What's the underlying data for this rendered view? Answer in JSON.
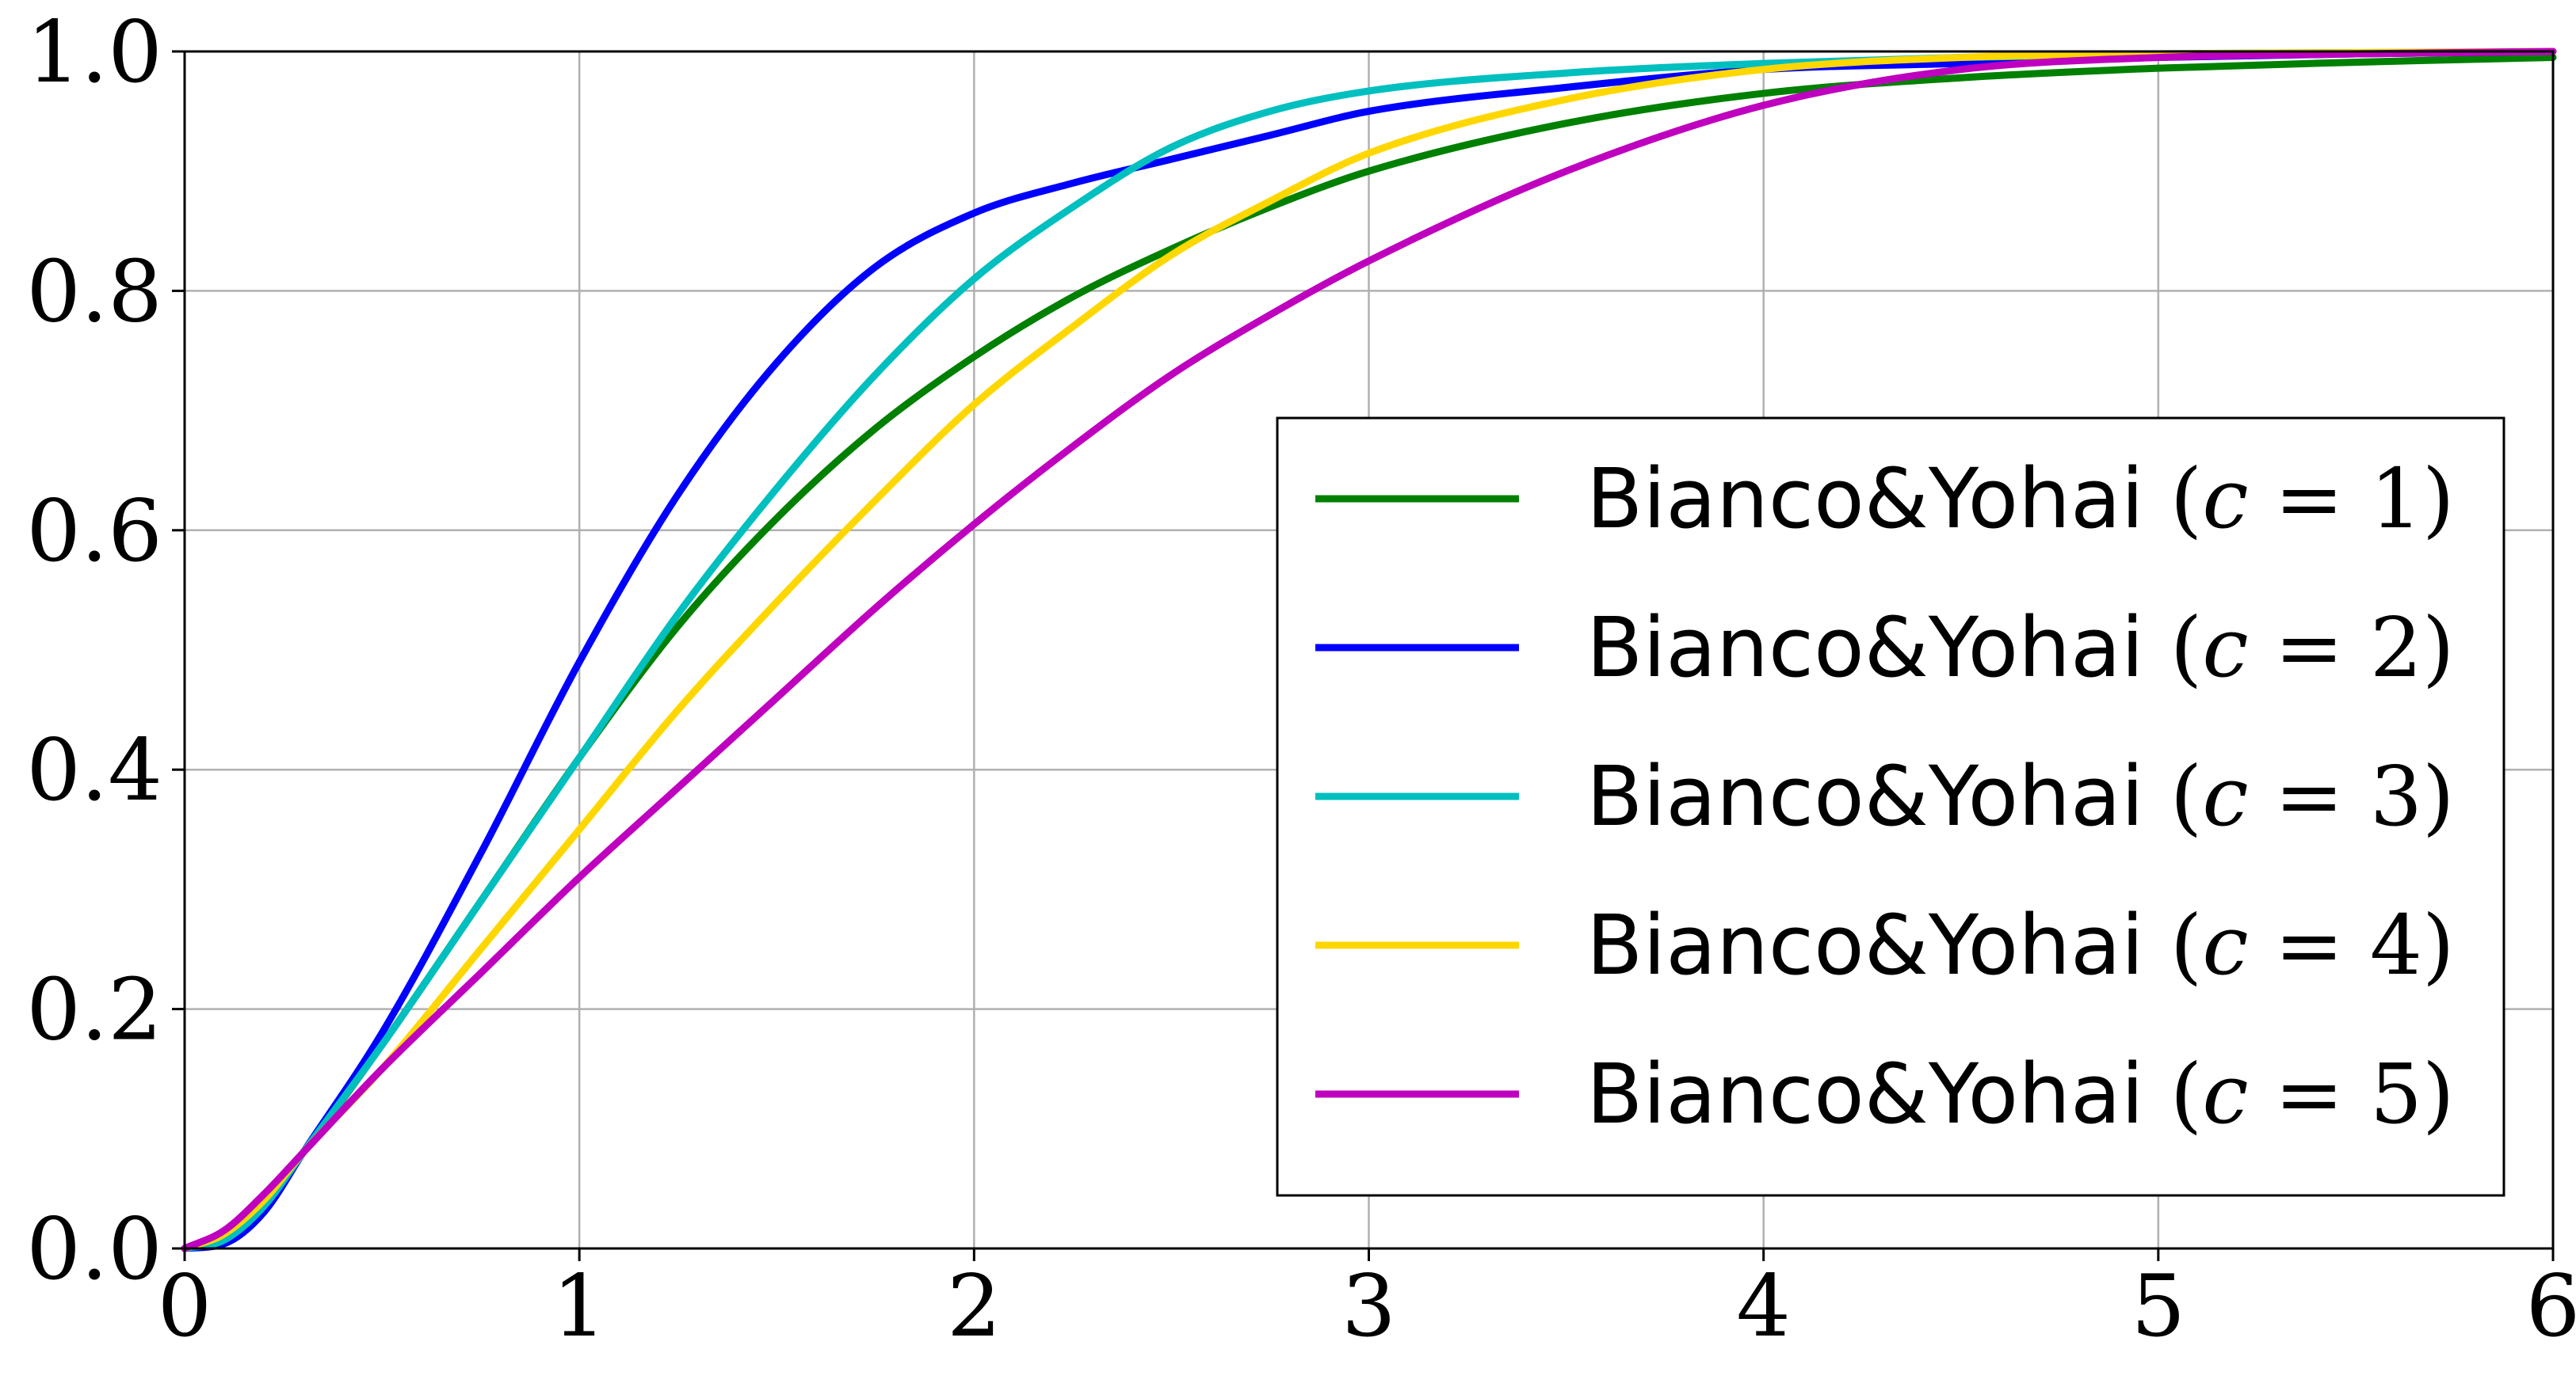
{
  "chart_data": {
    "type": "line",
    "title": "",
    "xlabel": "",
    "ylabel": "",
    "xlim": [
      0,
      6
    ],
    "ylim": [
      0,
      1
    ],
    "xticks": [
      0,
      1,
      2,
      3,
      4,
      5,
      6
    ],
    "yticks": [
      0.0,
      0.2,
      0.4,
      0.6,
      0.8,
      1.0
    ],
    "xtick_labels": [
      "0",
      "1",
      "2",
      "3",
      "4",
      "5",
      "6"
    ],
    "ytick_labels": [
      "0.0",
      "0.2",
      "0.4",
      "0.6",
      "0.8",
      "1.0"
    ],
    "grid": true,
    "legend_position": "lower-right",
    "series": [
      {
        "name": "Bianco&Yohai",
        "c": "1",
        "color": "#008000",
        "x": [
          0,
          0.1,
          0.2,
          0.3,
          0.5,
          0.75,
          1.0,
          1.25,
          1.5,
          1.75,
          2.0,
          2.25,
          2.5,
          2.75,
          3.0,
          3.5,
          4.0,
          4.5,
          5.0,
          5.5,
          6.0
        ],
        "y": [
          0,
          0.01,
          0.04,
          0.08,
          0.17,
          0.29,
          0.41,
          0.52,
          0.61,
          0.685,
          0.745,
          0.795,
          0.835,
          0.87,
          0.9,
          0.94,
          0.965,
          0.978,
          0.986,
          0.991,
          0.995
        ]
      },
      {
        "name": "Bianco&Yohai",
        "c": "2",
        "color": "#0000ff",
        "x": [
          0,
          0.1,
          0.2,
          0.3,
          0.5,
          0.75,
          1.0,
          1.25,
          1.5,
          1.75,
          2.0,
          2.25,
          2.5,
          2.75,
          3.0,
          3.5,
          4.0,
          4.5,
          5.0,
          5.5,
          6.0
        ],
        "y": [
          0,
          0.004,
          0.03,
          0.08,
          0.18,
          0.33,
          0.49,
          0.63,
          0.74,
          0.82,
          0.865,
          0.89,
          0.91,
          0.93,
          0.95,
          0.97,
          0.985,
          0.99,
          0.995,
          0.998,
          1.0
        ]
      },
      {
        "name": "Bianco&Yohai",
        "c": "3",
        "color": "#00bfbf",
        "x": [
          0,
          0.1,
          0.2,
          0.3,
          0.5,
          0.75,
          1.0,
          1.25,
          1.5,
          1.75,
          2.0,
          2.25,
          2.5,
          2.75,
          3.0,
          3.5,
          4.0,
          4.5,
          5.0,
          5.5,
          6.0
        ],
        "y": [
          0,
          0.007,
          0.035,
          0.08,
          0.17,
          0.29,
          0.41,
          0.53,
          0.635,
          0.73,
          0.81,
          0.87,
          0.92,
          0.95,
          0.967,
          0.982,
          0.99,
          0.995,
          0.998,
          0.999,
          1.0
        ]
      },
      {
        "name": "Bianco&Yohai",
        "c": "4",
        "color": "#ffd700",
        "x": [
          0,
          0.1,
          0.2,
          0.3,
          0.5,
          0.75,
          1.0,
          1.25,
          1.5,
          1.75,
          2.0,
          2.25,
          2.5,
          2.75,
          3.0,
          3.5,
          4.0,
          4.5,
          5.0,
          5.5,
          6.0
        ],
        "y": [
          0,
          0.012,
          0.04,
          0.08,
          0.15,
          0.25,
          0.35,
          0.45,
          0.54,
          0.625,
          0.705,
          0.77,
          0.83,
          0.875,
          0.915,
          0.96,
          0.985,
          0.995,
          0.998,
          0.999,
          1.0
        ]
      },
      {
        "name": "Bianco&Yohai",
        "c": "5",
        "color": "#bf00bf",
        "x": [
          0,
          0.1,
          0.2,
          0.3,
          0.5,
          0.75,
          1.0,
          1.25,
          1.5,
          1.75,
          2.0,
          2.25,
          2.5,
          2.75,
          3.0,
          3.5,
          4.0,
          4.5,
          5.0,
          5.5,
          6.0
        ],
        "y": [
          0,
          0.015,
          0.045,
          0.08,
          0.15,
          0.23,
          0.31,
          0.385,
          0.46,
          0.535,
          0.605,
          0.67,
          0.73,
          0.78,
          0.825,
          0.9,
          0.955,
          0.985,
          0.995,
          0.998,
          1.0
        ]
      }
    ]
  }
}
